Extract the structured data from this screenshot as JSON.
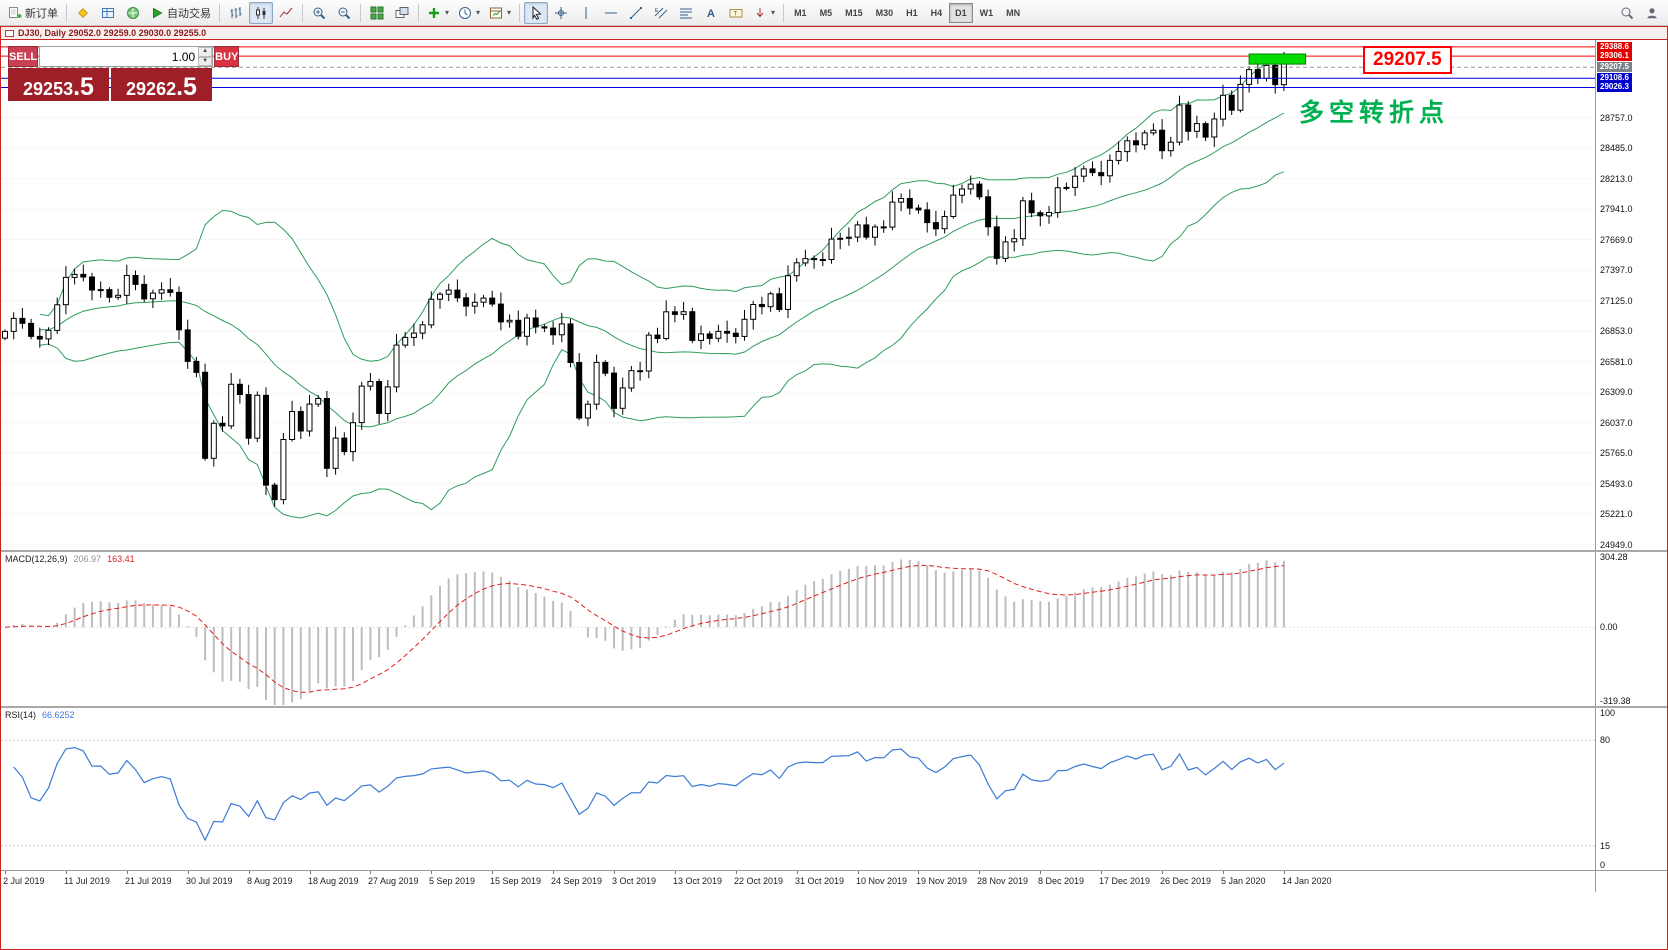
{
  "app": {
    "window_title": "DJ30, Daily  29052.0 29259.0 29030.0 29255.0"
  },
  "icons": {
    "caret": "▾",
    "volume_up": "▲",
    "volume_down": "▼"
  },
  "toolbar": {
    "new_order_label": "新订单",
    "autotrade_label": "自动交易",
    "timeframes": [
      "M1",
      "M5",
      "M15",
      "M30",
      "H1",
      "H4",
      "D1",
      "W1",
      "MN"
    ],
    "active_timeframe": "D1",
    "icon_names": [
      "new-order",
      "market-watch",
      "data-window",
      "navigator",
      "autotrading",
      "bar-chart",
      "candlestick-chart",
      "line-chart",
      "zoom-in",
      "zoom-out",
      "tile-windows",
      "auto-arrange",
      "indicators",
      "periods",
      "templates",
      "cursor",
      "crosshair",
      "vertical-line",
      "horizontal-line",
      "trendline",
      "equidistant-channel",
      "fibonacci",
      "text",
      "text-label",
      "arrows",
      "search",
      "profile"
    ]
  },
  "trade_panel": {
    "sell_label": "SELL",
    "buy_label": "BUY",
    "volume": "1.00",
    "sell_price_main": "29253",
    "sell_price_frac": ".5",
    "buy_price_main": "29262",
    "buy_price_frac": ".5"
  },
  "chart_data": {
    "type": "candlestick",
    "symbol": "DJ30",
    "period": "Daily",
    "last_bar": {
      "open": "29052.0",
      "high": "29259.0",
      "low": "29030.0",
      "close": "29255.0"
    },
    "price_range": {
      "max": 29450,
      "min": 24900
    },
    "x_label_every_n_bars": 7,
    "x_labels": [
      "2 Jul 2019",
      "11 Jul 2019",
      "21 Jul 2019",
      "30 Jul 2019",
      "8 Aug 2019",
      "18 Aug 2019",
      "27 Aug 2019",
      "5 Sep 2019",
      "15 Sep 2019",
      "24 Sep 2019",
      "3 Oct 2019",
      "13 Oct 2019",
      "22 Oct 2019",
      "31 Oct 2019",
      "10 Nov 2019",
      "19 Nov 2019",
      "28 Nov 2019",
      "8 Dec 2019",
      "17 Dec 2019",
      "26 Dec 2019",
      "5 Jan 2020",
      "14 Jan 2020"
    ],
    "closes": [
      26850,
      26966,
      26922,
      26806,
      26783,
      26860,
      27088,
      27332,
      27359,
      27336,
      27220,
      27223,
      27154,
      27172,
      27349,
      27270,
      27141,
      27192,
      27221,
      27198,
      26864,
      26583,
      26485,
      25718,
      26030,
      26007,
      26378,
      26287,
      25897,
      26280,
      25479,
      25350,
      25886,
      26136,
      25962,
      26202,
      26252,
      25629,
      25898,
      25778,
      26036,
      26362,
      26403,
      26118,
      26355,
      26728,
      26797,
      26835,
      26909,
      27137,
      27182,
      27219,
      27150,
      27076,
      27110,
      27147,
      27094,
      26935,
      26949,
      26807,
      26970,
      26891,
      26880,
      26820,
      26917,
      26573,
      26078,
      26201,
      26574,
      26478,
      26164,
      26346,
      26500,
      26497,
      26817,
      26787,
      27025,
      27002,
      27026,
      26770,
      26828,
      26788,
      26850,
      26834,
      26805,
      26958,
      27090,
      27071,
      27186,
      27046,
      27347,
      27462,
      27500,
      27492,
      27492,
      27674,
      27681,
      27691,
      27800,
      27691,
      27783,
      27781,
      28004,
      28036,
      27950,
      27934,
      27821,
      27766,
      27875,
      28066,
      28121,
      28164,
      28051,
      27783,
      27502,
      27649,
      27677,
      28015,
      27909,
      27881,
      27911,
      28132,
      28135,
      28235,
      28300,
      28267,
      28239,
      28376,
      28455,
      28551,
      28515,
      28621,
      28645,
      28462,
      28538,
      28869,
      28635,
      28704,
      28584,
      28745,
      28957,
      28824,
      29054,
      29186,
      29107,
      29223,
      29052,
      29255
    ],
    "price_axis_labels": [
      "28757.0",
      "28485.0",
      "28213.0",
      "27941.0",
      "27669.0",
      "27397.0",
      "27125.0",
      "26853.0",
      "26581.0",
      "26309.0",
      "26037.0",
      "25765.0",
      "25493.0",
      "25221.0",
      "24949.0"
    ],
    "axis_badges": [
      {
        "text": "29388.6",
        "price": 29388.6,
        "bg": "#e00000"
      },
      {
        "text": "29306.1",
        "price": 29306.1,
        "bg": "#e00000"
      },
      {
        "text": "29207.5",
        "price": 29207.5,
        "bg": "#7a8288"
      },
      {
        "text": "29108.6",
        "price": 29108.6,
        "bg": "#0000cc"
      },
      {
        "text": "29026.3",
        "price": 29026.3,
        "bg": "#0000cc"
      }
    ],
    "hlines": [
      {
        "price": 29388.6,
        "color": "#ff0000"
      },
      {
        "price": 29306.1,
        "color": "#ff0000"
      },
      {
        "price": 29207.5,
        "color": "#999999",
        "dashed": true
      },
      {
        "price": 29108.6,
        "color": "#0000e0"
      },
      {
        "price": 29026.3,
        "color": "#0000e0"
      }
    ],
    "indicators": {
      "bollinger": {
        "color": "#2e9e5b"
      },
      "macd": {
        "label": "MACD(12,26,9)",
        "value_main": "206.97",
        "value_signal": "163.41",
        "axis_labels": [
          "304.28",
          "0.00",
          "-319.38"
        ],
        "range": {
          "max": 310,
          "min": -325
        }
      },
      "rsi": {
        "label": "RSI(14)",
        "value": "66.6252",
        "axis_labels": [
          "100",
          "80",
          "15",
          "0"
        ],
        "levels": [
          80,
          15
        ],
        "range": {
          "max": 100,
          "min": 0
        }
      }
    },
    "annotations": {
      "highlight_rect": {
        "bar_start": 143,
        "bar_end": 149.5,
        "price_top": 29325,
        "price_bottom": 29235,
        "fill": "#00dc00",
        "stroke": "#008000"
      },
      "price_box_text": "29207.5",
      "note_text": "多空转折点"
    },
    "colors": {
      "up_candle": "#ffffff",
      "down_candle": "#000000",
      "candle_outline": "#000000",
      "bollinger": "#2e9e5b",
      "grid": "#dcdcdc",
      "macd_histogram": "#bdbdbd",
      "macd_signal": "#e02020",
      "rsi_line": "#3a7bd5",
      "resistance_line": "#ff0000",
      "support_line": "#0000e0",
      "current_price_line": "#999999"
    }
  }
}
